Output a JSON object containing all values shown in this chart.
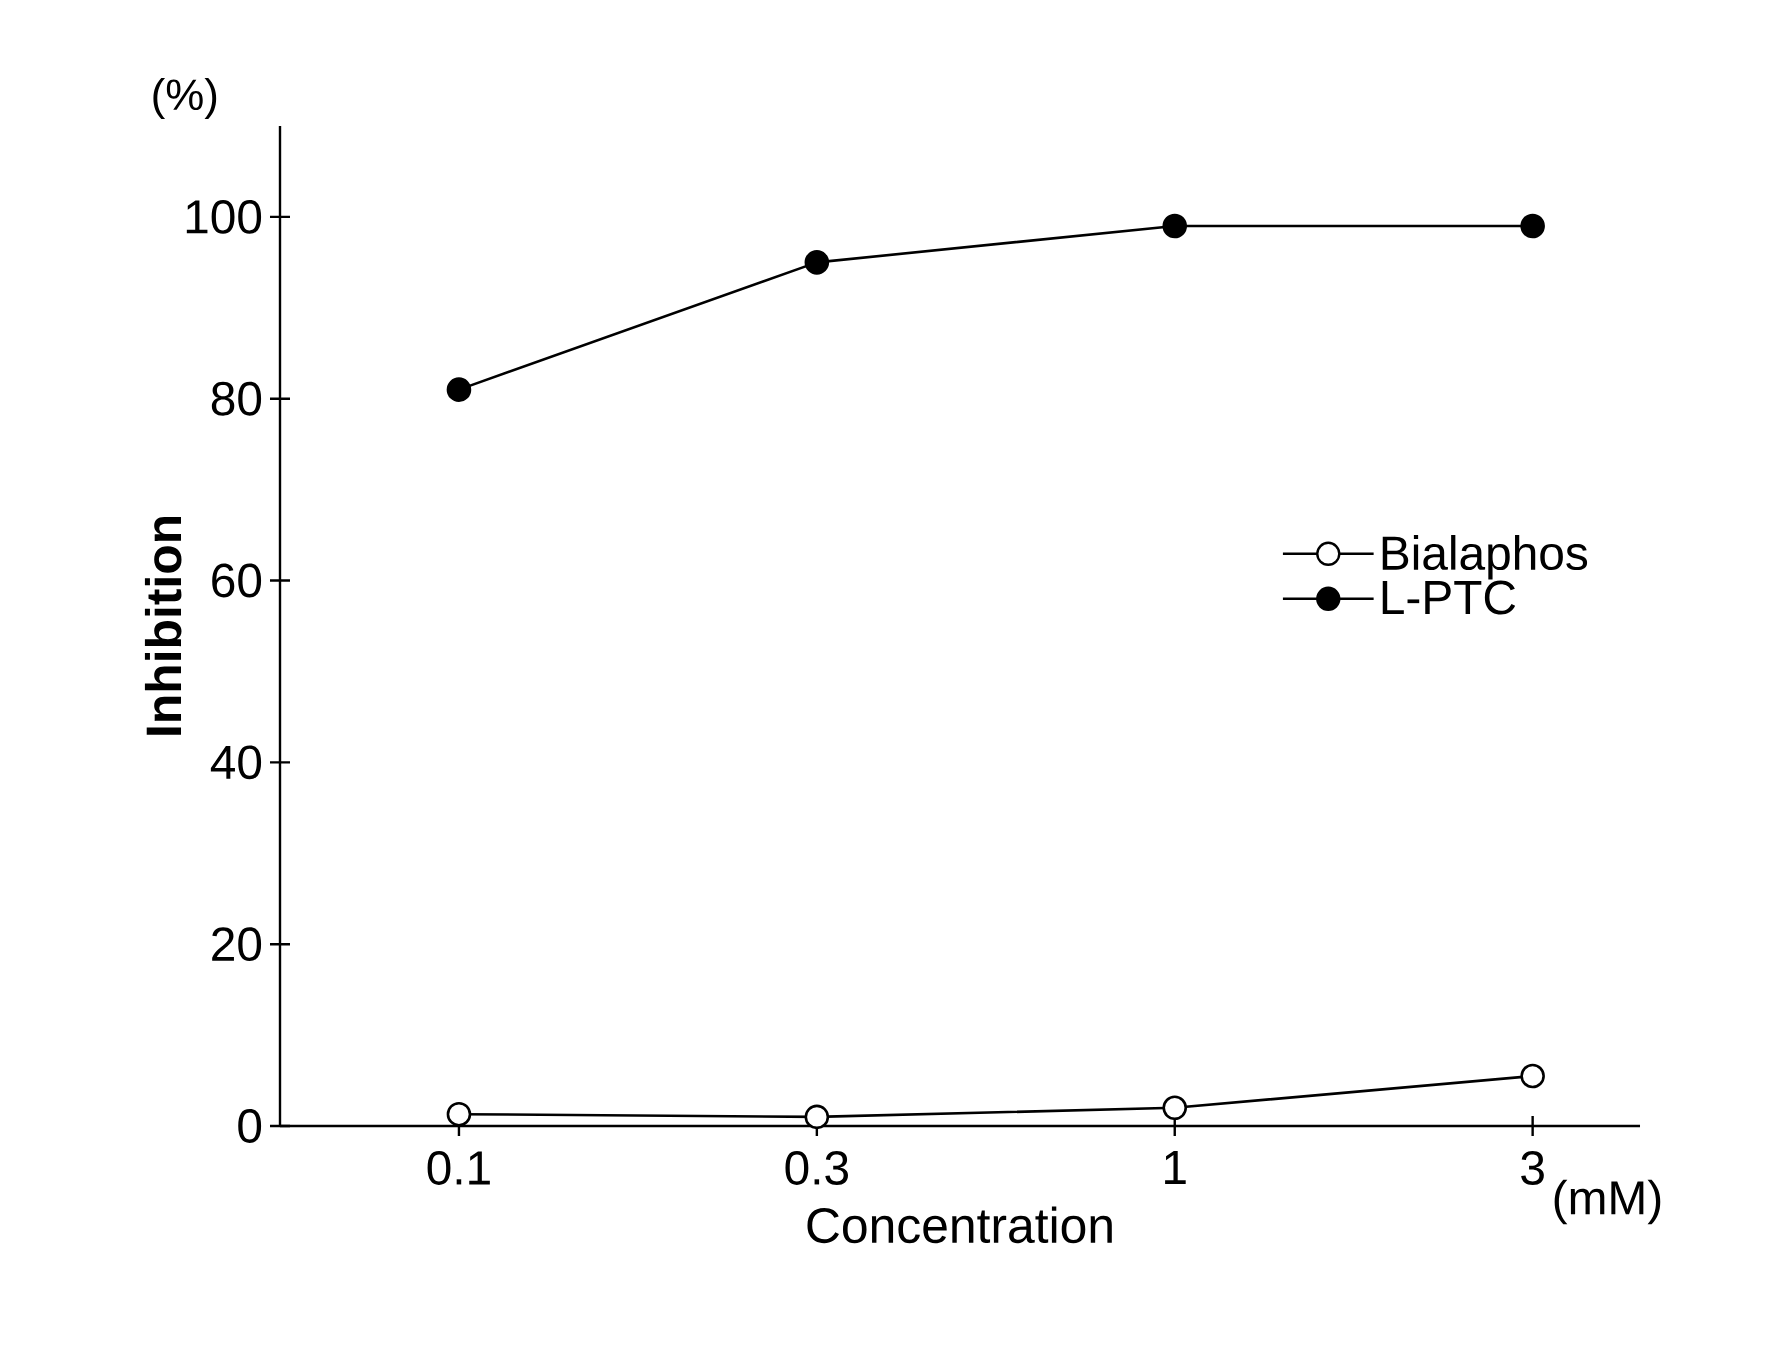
{
  "chart_data": {
    "type": "line",
    "xlabel": "Concentration",
    "ylabel": "Inhibition",
    "categories": [
      "0.1",
      "0.3",
      "1",
      "3"
    ],
    "series": [
      {
        "name": "Bialaphos",
        "color": "#ffffff",
        "values": [
          1.3,
          1,
          2,
          5.5
        ]
      },
      {
        "name": "L-PTC",
        "color": "#000000",
        "values": [
          81,
          95,
          99,
          99
        ]
      }
    ],
    "ylim": [
      0,
      110
    ],
    "yticks": [
      0,
      20,
      40,
      60,
      80,
      100
    ],
    "marker": "circle",
    "legend": "right",
    "grid": false,
    "annotations": [
      "(%)",
      "(mM)"
    ]
  }
}
